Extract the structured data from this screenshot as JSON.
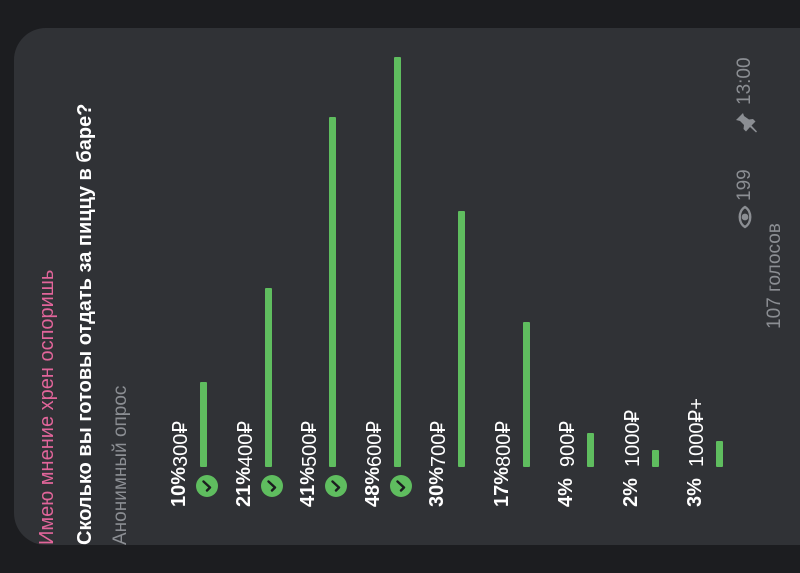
{
  "post": {
    "channel_name": "Имею мнение хрен оспоришь",
    "question": "Сколько вы готовы отдать за пиццу в баре?",
    "poll_type": "Анонимный опрос",
    "total_votes": "107 голосов",
    "views": "199",
    "time": "13:00"
  },
  "poll": {
    "options": [
      {
        "pct": "10%",
        "label": "300₽",
        "value": 10,
        "voted": true
      },
      {
        "pct": "21%",
        "label": "400₽",
        "value": 21,
        "voted": true
      },
      {
        "pct": "41%",
        "label": "500₽",
        "value": 41,
        "voted": true
      },
      {
        "pct": "48%",
        "label": "600₽",
        "value": 48,
        "voted": true
      },
      {
        "pct": "30%",
        "label": "700₽",
        "value": 30,
        "voted": false
      },
      {
        "pct": "17%",
        "label": "800₽",
        "value": 17,
        "voted": false
      },
      {
        "pct": "4%",
        "label": "900₽",
        "value": 4,
        "voted": false
      },
      {
        "pct": "2%",
        "label": "1000₽",
        "value": 2,
        "voted": false
      },
      {
        "pct": "3%",
        "label": "1000₽+",
        "value": 3,
        "voted": false
      }
    ]
  },
  "colors": {
    "accent": "#5fbd5f",
    "channel": "#e1659a",
    "muted": "#8b8e93",
    "bubble": "#303236",
    "background": "#1c1d20"
  },
  "icons": [
    "check-icon",
    "eye-icon",
    "pin-icon"
  ]
}
